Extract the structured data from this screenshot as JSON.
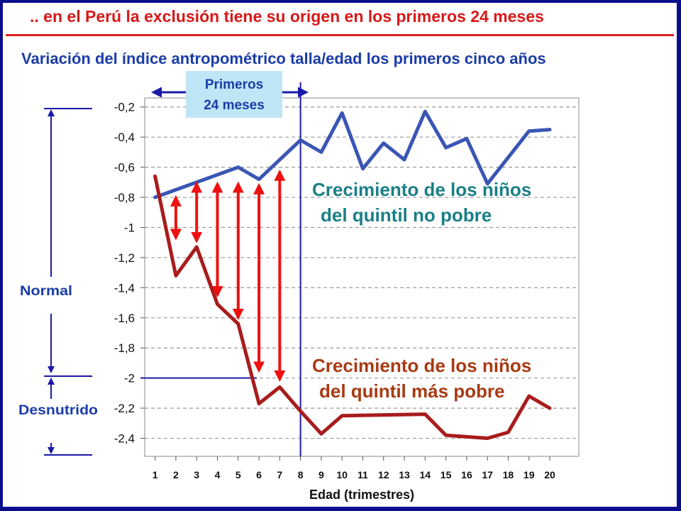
{
  "slide": {
    "title": ".. en el Perú la exclusión tiene su origen en los primeros 24 meses",
    "subtitle": "Variación del índice antropométrico talla/edad los primeros cinco años"
  },
  "annotations": {
    "primeros_line1": "Primeros",
    "primeros_line2": "24 meses",
    "normal": "Normal",
    "desnutrido": "Desnutrido",
    "no_pobre_line1": "Crecimiento de los niños",
    "no_pobre_line2": "del quintil no pobre",
    "pobre_line1": "Crecimiento de los niños",
    "pobre_line2": "del quintil más pobre"
  },
  "colors": {
    "frame": "#0b0f8c",
    "title": "#d81818",
    "subtitle": "#1a3ca8",
    "series_no_pobre": "#3a56b4",
    "series_pobre": "#a81c1c",
    "gap_arrows": "#ee1111",
    "label_no_pobre": "#1a7f86",
    "label_pobre": "#a83a12",
    "primeros_box": "#bfe6f7"
  },
  "chart_data": {
    "type": "line",
    "title": "",
    "xlabel": "Edad (trimestres)",
    "ylabel": "",
    "x": [
      1,
      2,
      3,
      4,
      5,
      6,
      7,
      8,
      9,
      10,
      11,
      12,
      13,
      14,
      15,
      16,
      17,
      18,
      19,
      20
    ],
    "xlim": [
      0.5,
      21.4
    ],
    "ylim": [
      -2.52,
      -0.14
    ],
    "y_ticks": [
      -0.2,
      -0.4,
      -0.6,
      -0.8,
      -1,
      -1.2,
      -1.4,
      -1.6,
      -1.8,
      -2,
      -2.2,
      -2.4
    ],
    "y_tick_labels": [
      "-0,2",
      "-0,4",
      "-0,6",
      "-0,8",
      "-1",
      "-1,2",
      "-1,4",
      "-1,6",
      "-1,8",
      "-2",
      "-2,2",
      "-2,4"
    ],
    "x_tick_labels": [
      "1",
      "2",
      "3",
      "4",
      "5",
      "6",
      "7",
      "8",
      "9",
      "10",
      "11",
      "12",
      "13",
      "14",
      "15",
      "16",
      "17",
      "18",
      "19",
      "20"
    ],
    "grid": true,
    "series": [
      {
        "name": "Crecimiento de los niños del quintil no pobre",
        "x": [
          1,
          5,
          6,
          8,
          9,
          10,
          11,
          12,
          13,
          14,
          15,
          16,
          17,
          19,
          20
        ],
        "values": [
          -0.8,
          -0.6,
          -0.68,
          -0.42,
          -0.5,
          -0.24,
          -0.61,
          -0.44,
          -0.55,
          -0.23,
          -0.47,
          -0.41,
          -0.71,
          -0.36,
          -0.35
        ]
      },
      {
        "name": "Crecimiento de los niños del quintil más pobre",
        "x": [
          1,
          2,
          3,
          4,
          5,
          6,
          7,
          8,
          9,
          10,
          14,
          15,
          17,
          18,
          19,
          20
        ],
        "values": [
          -0.66,
          -1.32,
          -1.13,
          -1.51,
          -1.64,
          -2.17,
          -2.06,
          -2.22,
          -2.37,
          -2.25,
          -2.24,
          -2.38,
          -2.4,
          -2.36,
          -2.12,
          -2.2
        ]
      }
    ],
    "gap_arrows": [
      {
        "x": 2,
        "top": -0.8,
        "bottom": -1.07
      },
      {
        "x": 3,
        "top": -0.71,
        "bottom": -1.09
      },
      {
        "x": 4,
        "top": -0.71,
        "bottom": -1.45
      },
      {
        "x": 5,
        "top": -0.71,
        "bottom": -1.6
      },
      {
        "x": 6,
        "top": -0.72,
        "bottom": -1.95
      },
      {
        "x": 7,
        "top": -0.63,
        "bottom": -2.01
      }
    ],
    "marker_x": 8,
    "reference_y": -2
  }
}
